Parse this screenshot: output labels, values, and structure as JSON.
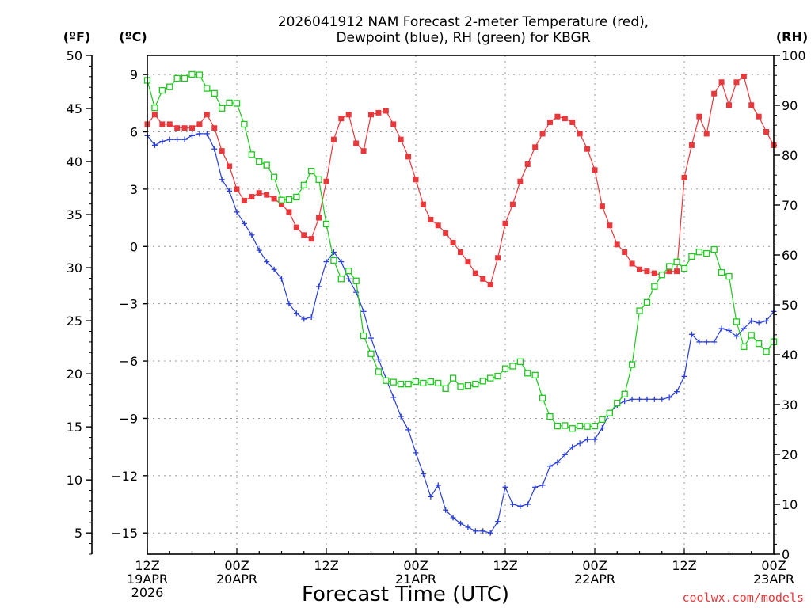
{
  "chart_data": {
    "type": "line",
    "title": [
      "2026041912 NAM Forecast 2-meter Temperature (red),",
      "Dewpoint (blue), RH (green) for KBGR"
    ],
    "xlabel": "Forecast Time (UTC)",
    "credit": "coolwx.com/models",
    "units": {
      "fahrenheit": "(ºF)",
      "celsius": "(ºC)",
      "rh": "(RH)"
    },
    "x_range_hours": [
      0,
      84
    ],
    "x_ticks": [
      {
        "hour": 0,
        "lines": [
          "12Z",
          "19APR",
          "2026"
        ]
      },
      {
        "hour": 12,
        "lines": [
          "00Z",
          "20APR"
        ]
      },
      {
        "hour": 24,
        "lines": [
          "12Z"
        ]
      },
      {
        "hour": 36,
        "lines": [
          "00Z",
          "21APR"
        ]
      },
      {
        "hour": 48,
        "lines": [
          "12Z"
        ]
      },
      {
        "hour": 60,
        "lines": [
          "00Z",
          "22APR"
        ]
      },
      {
        "hour": 72,
        "lines": [
          "12Z"
        ]
      },
      {
        "hour": 84,
        "lines": [
          "00Z",
          "23APR"
        ]
      }
    ],
    "celsius_axis": {
      "range": [
        -16.11,
        10.0
      ],
      "ticks": [
        "9",
        "6",
        "3",
        "0",
        "−3",
        "−6",
        "−9",
        "−12",
        "−15"
      ],
      "tick_values": [
        9,
        6,
        3,
        0,
        -3,
        -6,
        -9,
        -12,
        -15
      ]
    },
    "fahrenheit_axis": {
      "range": [
        3,
        50
      ],
      "ticks": [
        "50",
        "45",
        "40",
        "35",
        "30",
        "25",
        "20",
        "15",
        "10",
        "5"
      ],
      "tick_values": [
        50,
        45,
        40,
        35,
        30,
        25,
        20,
        15,
        10,
        5
      ]
    },
    "rh_axis": {
      "range": [
        0,
        100
      ],
      "ticks": [
        "100",
        "90",
        "80",
        "70",
        "60",
        "50",
        "40",
        "30",
        "20",
        "10",
        "0"
      ],
      "tick_values": [
        100,
        90,
        80,
        70,
        60,
        50,
        40,
        30,
        20,
        10,
        0
      ]
    },
    "series": [
      {
        "name": "2-meter Temperature",
        "units": "C",
        "color": "#e8383b",
        "marker": "filled-square",
        "x": [
          0,
          1,
          2,
          3,
          4,
          5,
          6,
          7,
          8,
          9,
          10,
          11,
          12,
          13,
          14,
          15,
          16,
          17,
          18,
          19,
          20,
          21,
          22,
          23,
          24,
          25,
          26,
          27,
          28,
          29,
          30,
          31,
          32,
          33,
          34,
          35,
          36,
          37,
          38,
          39,
          40,
          41,
          42,
          43,
          44,
          45,
          46,
          47,
          48,
          49,
          50,
          51,
          52,
          53,
          54,
          55,
          56,
          57,
          58,
          59,
          60,
          61,
          62,
          63,
          64,
          65,
          66,
          67,
          68,
          69,
          70,
          71,
          72,
          73,
          74,
          75,
          76,
          77,
          78,
          79,
          80,
          81,
          82,
          83,
          84
        ],
        "values": [
          6.4,
          6.9,
          6.4,
          6.4,
          6.2,
          6.2,
          6.2,
          6.4,
          6.9,
          6.2,
          5.0,
          4.2,
          3.0,
          2.4,
          2.6,
          2.8,
          2.7,
          2.5,
          2.2,
          1.8,
          1.0,
          0.6,
          0.4,
          1.5,
          3.4,
          5.6,
          6.7,
          6.9,
          5.4,
          5.0,
          6.9,
          7.0,
          7.1,
          6.4,
          5.6,
          4.7,
          3.5,
          2.2,
          1.4,
          1.1,
          0.7,
          0.2,
          -0.3,
          -0.8,
          -1.4,
          -1.7,
          -2.0,
          -0.6,
          1.2,
          2.2,
          3.4,
          4.3,
          5.2,
          5.9,
          6.5,
          6.8,
          6.7,
          6.5,
          5.9,
          5.1,
          4.0,
          2.1,
          1.1,
          0.1,
          -0.3,
          -0.9,
          -1.2,
          -1.3,
          -1.4,
          -1.5,
          -1.3,
          -1.3,
          3.6,
          5.3,
          6.8,
          5.9,
          8.0,
          8.6,
          7.4,
          8.6,
          8.9,
          7.4,
          6.8,
          6.0,
          5.3
        ]
      },
      {
        "name": "Dewpoint",
        "units": "C",
        "color": "#2a3fd6",
        "marker": "plus",
        "x": [
          0,
          1,
          2,
          3,
          4,
          5,
          6,
          7,
          8,
          9,
          10,
          11,
          12,
          13,
          14,
          15,
          16,
          17,
          18,
          19,
          20,
          21,
          22,
          23,
          24,
          25,
          26,
          27,
          28,
          29,
          30,
          31,
          32,
          33,
          34,
          35,
          36,
          37,
          38,
          39,
          40,
          41,
          42,
          43,
          44,
          45,
          46,
          47,
          48,
          49,
          50,
          51,
          52,
          53,
          54,
          55,
          56,
          57,
          58,
          59,
          60,
          61,
          62,
          63,
          64,
          65,
          66,
          67,
          68,
          69,
          70,
          71,
          72,
          73,
          74,
          75,
          76,
          77,
          78,
          79,
          80,
          81,
          82,
          83,
          84
        ],
        "values": [
          5.8,
          5.3,
          5.5,
          5.6,
          5.6,
          5.6,
          5.8,
          5.9,
          5.9,
          5.1,
          3.5,
          2.9,
          1.8,
          1.2,
          0.6,
          -0.2,
          -0.8,
          -1.2,
          -1.7,
          -3.0,
          -3.5,
          -3.8,
          -3.7,
          -2.1,
          -0.8,
          -0.3,
          -0.8,
          -1.7,
          -2.4,
          -3.4,
          -4.8,
          -5.9,
          -6.9,
          -7.9,
          -8.9,
          -9.6,
          -10.8,
          -11.9,
          -13.1,
          -12.5,
          -13.8,
          -14.2,
          -14.5,
          -14.7,
          -14.9,
          -14.9,
          -15.0,
          -14.4,
          -12.6,
          -13.5,
          -13.6,
          -13.5,
          -12.6,
          -12.5,
          -11.5,
          -11.3,
          -10.9,
          -10.5,
          -10.3,
          -10.1,
          -10.1,
          -9.5,
          -8.7,
          -8.3,
          -8.1,
          -8.0,
          -8.0,
          -8.0,
          -8.0,
          -8.0,
          -7.9,
          -7.6,
          -6.8,
          -4.6,
          -5.0,
          -5.0,
          -5.0,
          -4.3,
          -4.4,
          -4.7,
          -4.3,
          -3.9,
          -4.0,
          -3.9,
          -3.4
        ]
      },
      {
        "name": "RH",
        "units": "%",
        "color": "#1ec81e",
        "marker": "open-square",
        "x": [
          0,
          1,
          2,
          3,
          4,
          5,
          6,
          7,
          8,
          9,
          10,
          11,
          12,
          13,
          14,
          15,
          16,
          17,
          18,
          19,
          20,
          21,
          22,
          23,
          24,
          25,
          26,
          27,
          28,
          29,
          30,
          31,
          32,
          33,
          34,
          35,
          36,
          37,
          38,
          39,
          40,
          41,
          42,
          43,
          44,
          45,
          46,
          47,
          48,
          49,
          50,
          51,
          52,
          53,
          54,
          55,
          56,
          57,
          58,
          59,
          60,
          61,
          62,
          63,
          64,
          65,
          66,
          67,
          68,
          69,
          70,
          71,
          72,
          73,
          74,
          75,
          76,
          77,
          78,
          79,
          80,
          81,
          82,
          83,
          84
        ],
        "values": [
          95.0,
          89.5,
          93.0,
          93.7,
          95.4,
          95.4,
          96.2,
          96.1,
          93.4,
          92.4,
          89.4,
          90.5,
          90.4,
          86.2,
          80.1,
          78.7,
          78.0,
          75.6,
          71.0,
          71.1,
          71.6,
          74.0,
          76.8,
          75.1,
          66.2,
          58.9,
          55.2,
          56.8,
          54.8,
          43.8,
          40.2,
          36.6,
          34.8,
          34.5,
          34.1,
          34.1,
          34.6,
          34.3,
          34.6,
          34.3,
          33.2,
          35.3,
          33.6,
          33.8,
          34.1,
          34.7,
          35.3,
          35.7,
          37.2,
          37.7,
          38.6,
          36.3,
          35.9,
          31.3,
          27.6,
          25.7,
          25.8,
          25.2,
          25.7,
          25.6,
          25.7,
          27.0,
          28.3,
          30.3,
          32.1,
          38.0,
          48.8,
          50.5,
          53.7,
          56.0,
          57.7,
          58.6,
          57.3,
          59.7,
          60.6,
          60.3,
          61.1,
          56.5,
          55.7,
          46.6,
          41.6,
          43.9,
          42.2,
          40.6,
          42.6
        ]
      }
    ]
  }
}
